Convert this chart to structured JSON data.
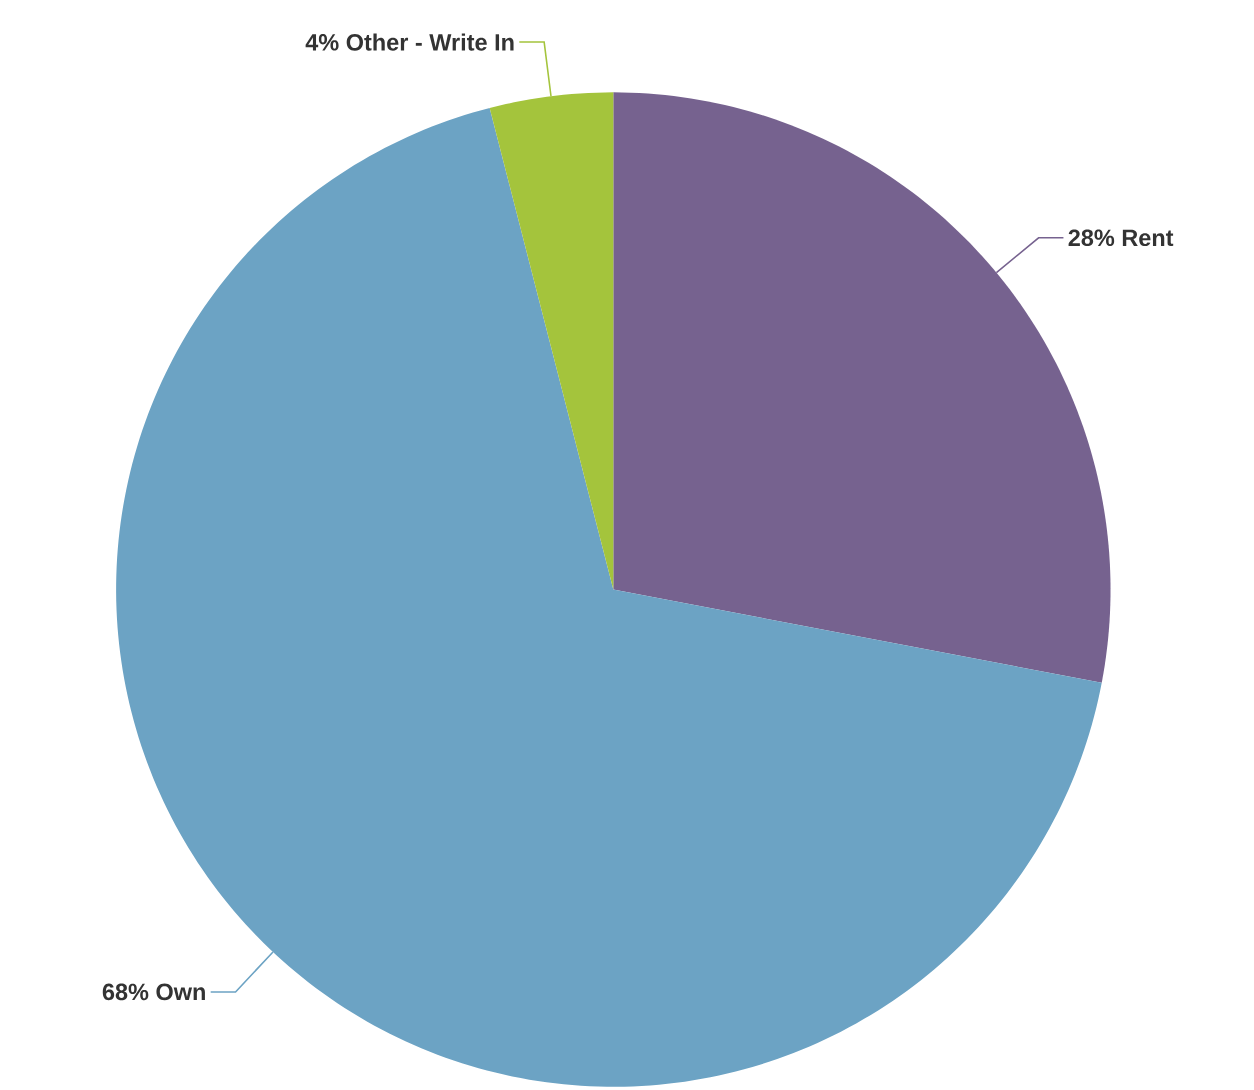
{
  "chart_data": {
    "type": "pie",
    "categories": [
      "Rent",
      "Own",
      "Other - Write In"
    ],
    "values": [
      28,
      68,
      4
    ],
    "value_labels": [
      "28%",
      "68%",
      "4%"
    ],
    "colors": [
      "#76628f",
      "#6ca3c4",
      "#a4c43c"
    ]
  }
}
